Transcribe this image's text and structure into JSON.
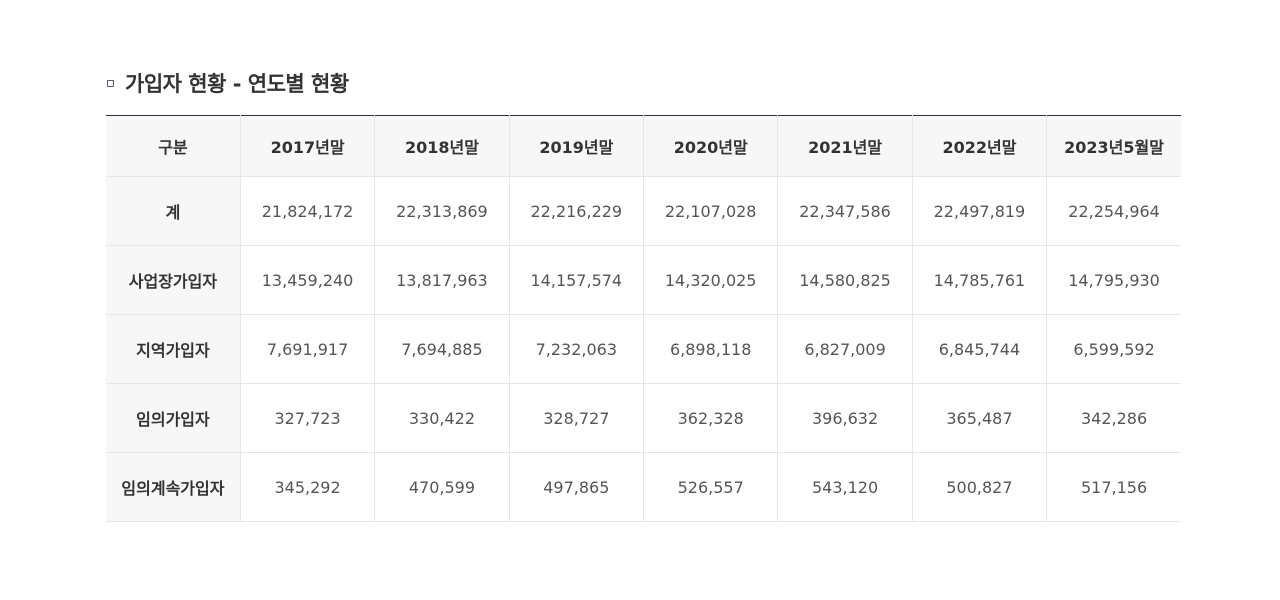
{
  "section": {
    "title": "가입자 현황 - 연도별 현황"
  },
  "table": {
    "headers": [
      "구분",
      "2017년말",
      "2018년말",
      "2019년말",
      "2020년말",
      "2021년말",
      "2022년말",
      "2023년5월말"
    ],
    "rows": [
      {
        "label": "계",
        "values": [
          "21,824,172",
          "22,313,869",
          "22,216,229",
          "22,107,028",
          "22,347,586",
          "22,497,819",
          "22,254,964"
        ]
      },
      {
        "label": "사업장가입자",
        "values": [
          "13,459,240",
          "13,817,963",
          "14,157,574",
          "14,320,025",
          "14,580,825",
          "14,785,761",
          "14,795,930"
        ]
      },
      {
        "label": "지역가입자",
        "values": [
          "7,691,917",
          "7,694,885",
          "7,232,063",
          "6,898,118",
          "6,827,009",
          "6,845,744",
          "6,599,592"
        ]
      },
      {
        "label": "임의가입자",
        "values": [
          "327,723",
          "330,422",
          "328,727",
          "362,328",
          "396,632",
          "365,487",
          "342,286"
        ]
      },
      {
        "label": "임의계속가입자",
        "values": [
          "345,292",
          "470,599",
          "497,865",
          "526,557",
          "543,120",
          "500,827",
          "517,156"
        ]
      }
    ]
  }
}
